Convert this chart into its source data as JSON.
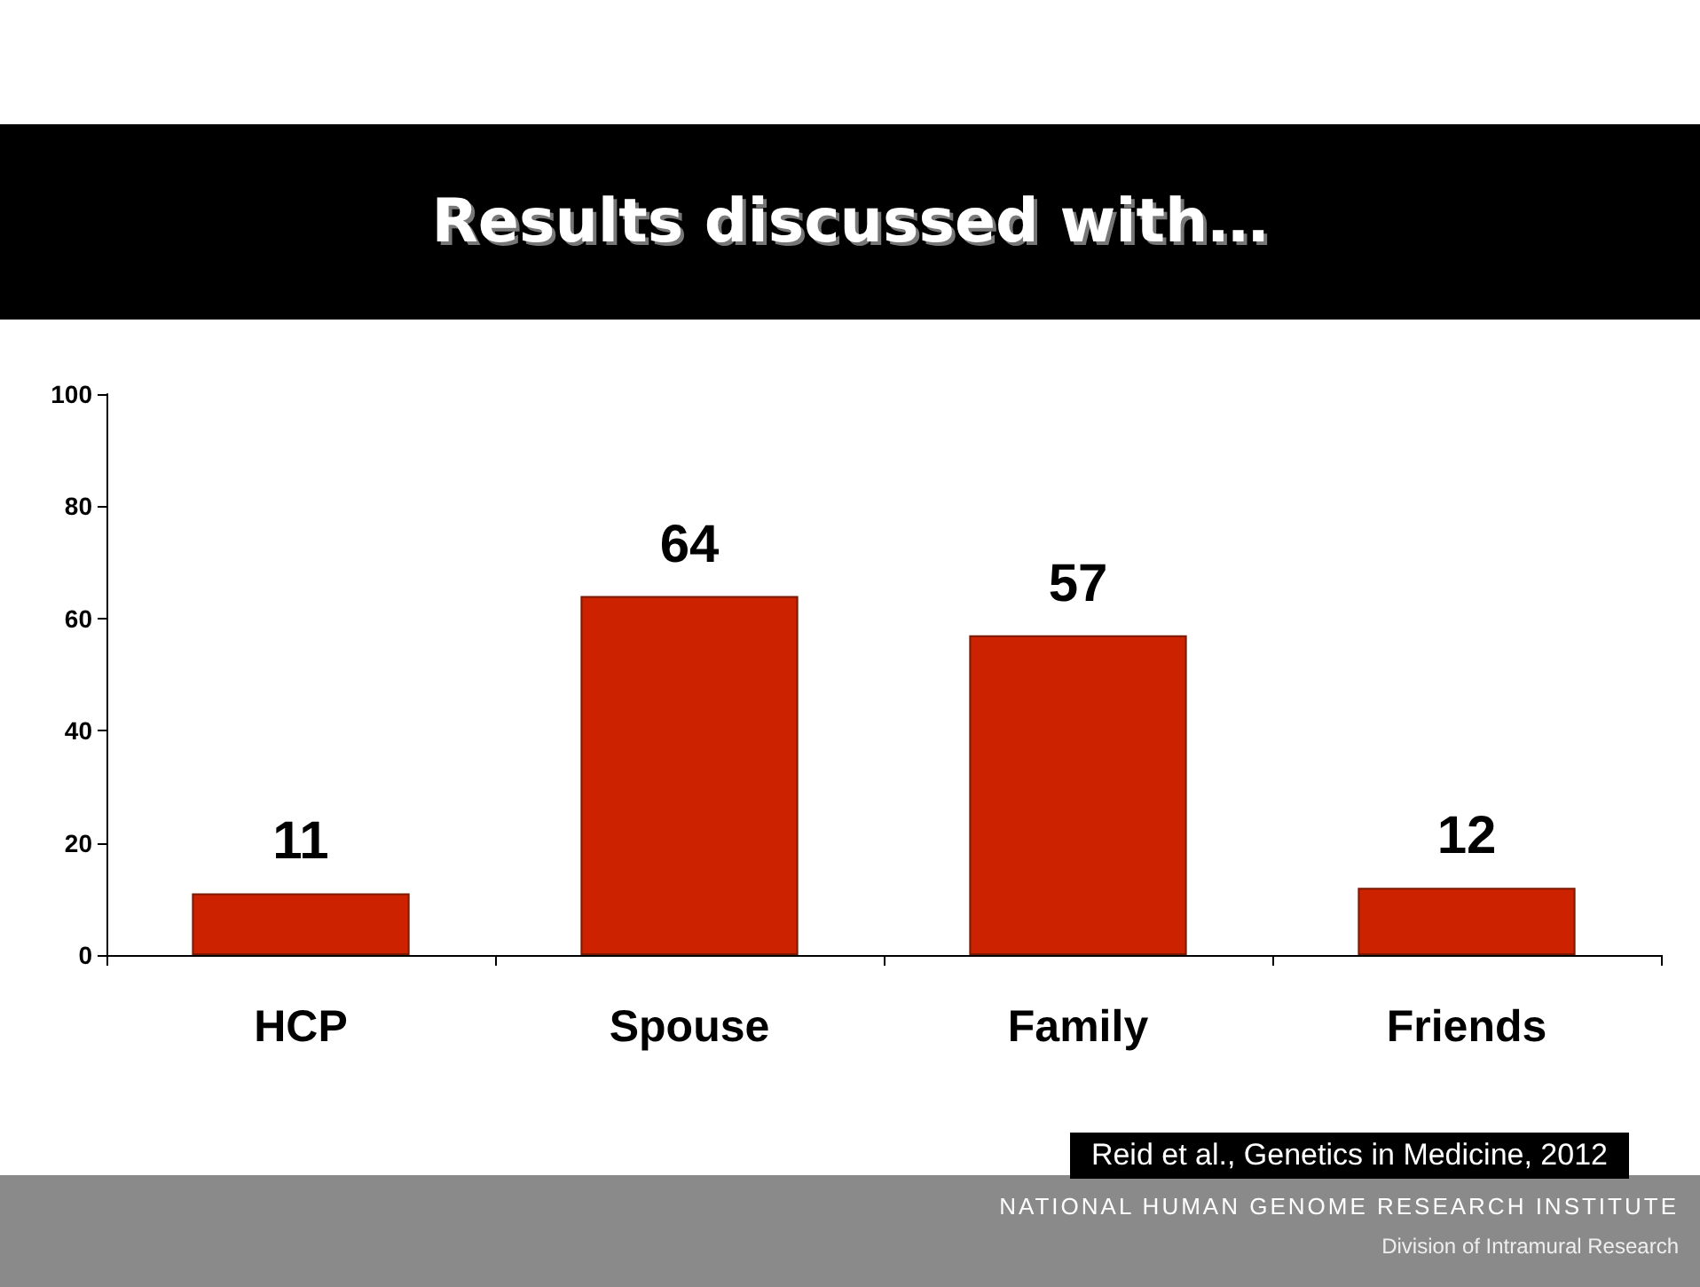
{
  "chart_data": {
    "type": "bar",
    "title": "Results discussed with…",
    "categories": [
      "HCP",
      "Spouse",
      "Family",
      "Friends"
    ],
    "values": [
      11,
      64,
      57,
      12
    ],
    "color": "#cc2200",
    "ylim": [
      0,
      100
    ],
    "yticks": [
      0,
      20,
      40,
      60,
      80,
      100
    ],
    "grid": false,
    "data_labels": true,
    "annotations": [
      "Reid et al., Genetics in Medicine, 2012",
      "NATIONAL HUMAN GENOME RESEARCH INSTITUTE",
      "Division of Intramural Research"
    ]
  }
}
